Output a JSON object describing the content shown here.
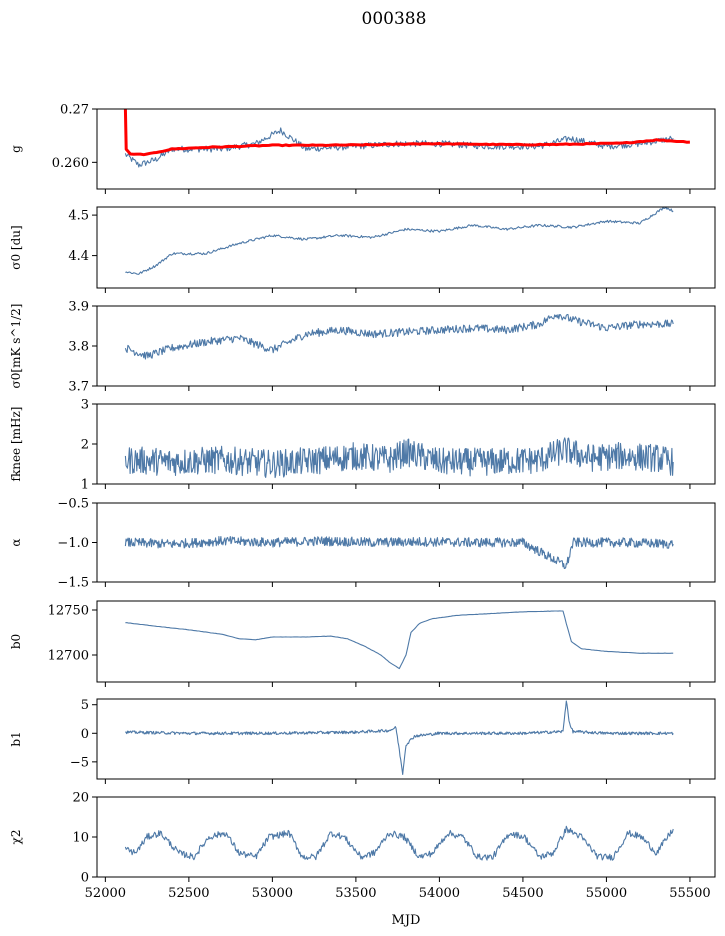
{
  "title": "000388",
  "xlabel": "MJD",
  "colors": {
    "primary": "#4e79a7",
    "fit": "#ff0000"
  },
  "chart_data": [
    {
      "type": "line",
      "name": "g",
      "ylabel": "g",
      "xlim": [
        51950,
        55650
      ],
      "ylim": [
        0.255,
        0.27
      ],
      "yticks": [
        0.26,
        0.27
      ],
      "ytick_labels": [
        "0.260",
        "0.27"
      ],
      "series": [
        {
          "name": "g",
          "x": [
            52120,
            52200,
            52300,
            52400,
            52500,
            52700,
            52900,
            53050,
            53200,
            53500,
            53750,
            54000,
            54300,
            54600,
            54780,
            55000,
            55200,
            55400
          ],
          "values": [
            0.2615,
            0.2595,
            0.2605,
            0.2625,
            0.2625,
            0.2625,
            0.2635,
            0.266,
            0.2625,
            0.263,
            0.2635,
            0.2635,
            0.263,
            0.263,
            0.2645,
            0.263,
            0.2635,
            0.2645
          ]
        },
        {
          "name": "g fit",
          "x": [
            52120,
            52125,
            52150,
            52250,
            52400,
            52600,
            52800,
            53000,
            53300,
            53600,
            53900,
            54200,
            54500,
            54800,
            55100,
            55300,
            55500
          ],
          "values": [
            0.2705,
            0.2625,
            0.2615,
            0.2615,
            0.2625,
            0.2628,
            0.263,
            0.2632,
            0.2632,
            0.2633,
            0.2635,
            0.2634,
            0.2633,
            0.2634,
            0.2636,
            0.2642,
            0.2638
          ]
        }
      ]
    },
    {
      "type": "line",
      "name": "sigma0-du",
      "ylabel": "σ0 [du]",
      "xlim": [
        51950,
        55650
      ],
      "ylim": [
        4.32,
        4.52
      ],
      "yticks": [
        4.4,
        4.5
      ],
      "ytick_labels": [
        "4.4",
        "4.5"
      ],
      "series": [
        {
          "name": "σ0",
          "x": [
            52120,
            52200,
            52300,
            52400,
            52600,
            52800,
            53000,
            53200,
            53400,
            53600,
            53800,
            54000,
            54200,
            54400,
            54600,
            54800,
            55000,
            55200,
            55350,
            55400
          ],
          "values": [
            4.36,
            4.355,
            4.375,
            4.405,
            4.405,
            4.43,
            4.45,
            4.44,
            4.45,
            4.445,
            4.465,
            4.46,
            4.475,
            4.465,
            4.475,
            4.47,
            4.485,
            4.48,
            4.52,
            4.51
          ]
        }
      ]
    },
    {
      "type": "line",
      "name": "sigma0-mk",
      "ylabel": "σ0[mK s^1/2]",
      "xlim": [
        51950,
        55650
      ],
      "ylim": [
        3.7,
        3.9
      ],
      "yticks": [
        3.7,
        3.8,
        3.9
      ],
      "ytick_labels": [
        "3.7",
        "3.8",
        "3.9"
      ],
      "series": [
        {
          "name": "σ0 mK",
          "x": [
            52120,
            52250,
            52400,
            52600,
            52800,
            53000,
            53200,
            53400,
            53600,
            53800,
            54000,
            54200,
            54400,
            54600,
            54700,
            54800,
            55000,
            55200,
            55400
          ],
          "values": [
            3.795,
            3.775,
            3.795,
            3.81,
            3.82,
            3.79,
            3.83,
            3.84,
            3.83,
            3.835,
            3.84,
            3.845,
            3.84,
            3.855,
            3.88,
            3.865,
            3.845,
            3.855,
            3.855
          ]
        }
      ]
    },
    {
      "type": "line",
      "name": "fknee",
      "ylabel": "fknee [mHz]",
      "xlim": [
        51950,
        55650
      ],
      "ylim": [
        1.0,
        3.0
      ],
      "yticks": [
        1,
        2,
        3
      ],
      "ytick_labels": [
        "1",
        "2",
        "3"
      ],
      "series": [
        {
          "name": "fknee",
          "x": [
            52120,
            52400,
            52700,
            53000,
            53300,
            53500,
            53700,
            53800,
            54000,
            54300,
            54600,
            54750,
            54900,
            55100,
            55300,
            55400
          ],
          "values": [
            1.6,
            1.55,
            1.6,
            1.5,
            1.6,
            1.7,
            1.6,
            1.8,
            1.55,
            1.55,
            1.6,
            1.85,
            1.65,
            1.7,
            1.65,
            1.55
          ]
        }
      ]
    },
    {
      "type": "line",
      "name": "alpha",
      "ylabel": "α",
      "xlim": [
        51950,
        55650
      ],
      "ylim": [
        -1.5,
        -0.5
      ],
      "yticks": [
        -1.5,
        -1.0,
        -0.5
      ],
      "ytick_labels": [
        "−1.5",
        "−1.0",
        "−0.5"
      ],
      "series": [
        {
          "name": "α",
          "x": [
            52120,
            52400,
            52700,
            53000,
            53300,
            53600,
            53900,
            54200,
            54500,
            54760,
            54800,
            55100,
            55400
          ],
          "values": [
            -1.0,
            -1.02,
            -0.98,
            -1.0,
            -0.98,
            -1.0,
            -0.99,
            -1.0,
            -1.0,
            -1.3,
            -1.0,
            -1.0,
            -1.02
          ]
        }
      ]
    },
    {
      "type": "line",
      "name": "b0",
      "ylabel": "b0",
      "xlim": [
        51950,
        55650
      ],
      "ylim": [
        12670,
        12760
      ],
      "yticks": [
        12700,
        12750
      ],
      "ytick_labels": [
        "12700",
        "12750"
      ],
      "series": [
        {
          "name": "b0",
          "x": [
            52120,
            52300,
            52500,
            52700,
            52800,
            52900,
            53000,
            53200,
            53350,
            53450,
            53550,
            53650,
            53700,
            53760,
            53800,
            53830,
            53880,
            53950,
            54100,
            54300,
            54500,
            54740,
            54760,
            54790,
            54850,
            55000,
            55200,
            55400
          ],
          "values": [
            12736,
            12732,
            12728,
            12723,
            12718,
            12717,
            12720,
            12720,
            12721,
            12718,
            12710,
            12700,
            12692,
            12685,
            12700,
            12725,
            12735,
            12740,
            12744,
            12746,
            12748,
            12749,
            12735,
            12715,
            12707,
            12704,
            12702,
            12702
          ]
        }
      ]
    },
    {
      "type": "line",
      "name": "b1",
      "ylabel": "b1",
      "xlim": [
        51950,
        55650
      ],
      "ylim": [
        -8,
        6
      ],
      "yticks": [
        -5,
        0,
        5
      ],
      "ytick_labels": [
        "−5",
        "0",
        "5"
      ],
      "series": [
        {
          "name": "b1",
          "x": [
            52120,
            52500,
            53000,
            53500,
            53700,
            53740,
            53760,
            53780,
            53800,
            53850,
            54000,
            54500,
            54740,
            54760,
            54780,
            54800,
            55000,
            55400
          ],
          "values": [
            0.2,
            0.0,
            0.0,
            0.2,
            0.5,
            1.0,
            -3.0,
            -7.0,
            -2.0,
            -0.5,
            0.0,
            0.0,
            0.3,
            5.8,
            1.5,
            0.3,
            0.0,
            0.0
          ]
        }
      ]
    },
    {
      "type": "line",
      "name": "chi2",
      "ylabel": "χ2",
      "xlim": [
        51950,
        55650
      ],
      "ylim": [
        0,
        20
      ],
      "yticks": [
        0,
        10,
        20
      ],
      "ytick_labels": [
        "0",
        "10",
        "20"
      ],
      "series": [
        {
          "name": "χ2",
          "x": [
            52120,
            52180,
            52250,
            52330,
            52440,
            52530,
            52620,
            52720,
            52800,
            52900,
            52980,
            53100,
            53180,
            53260,
            53350,
            53430,
            53530,
            53610,
            53700,
            53790,
            53880,
            53960,
            54050,
            54140,
            54230,
            54320,
            54420,
            54510,
            54600,
            54680,
            54760,
            54850,
            54950,
            55040,
            55130,
            55210,
            55300,
            55400
          ],
          "values": [
            7,
            6,
            10,
            11,
            6,
            5,
            10,
            11,
            6,
            5,
            10,
            11,
            5,
            5,
            11,
            10,
            5,
            6,
            11,
            10,
            5,
            6,
            11,
            10,
            5,
            5,
            11,
            10,
            5,
            6,
            12,
            10,
            5,
            5,
            11,
            10,
            6,
            12
          ]
        }
      ]
    }
  ]
}
